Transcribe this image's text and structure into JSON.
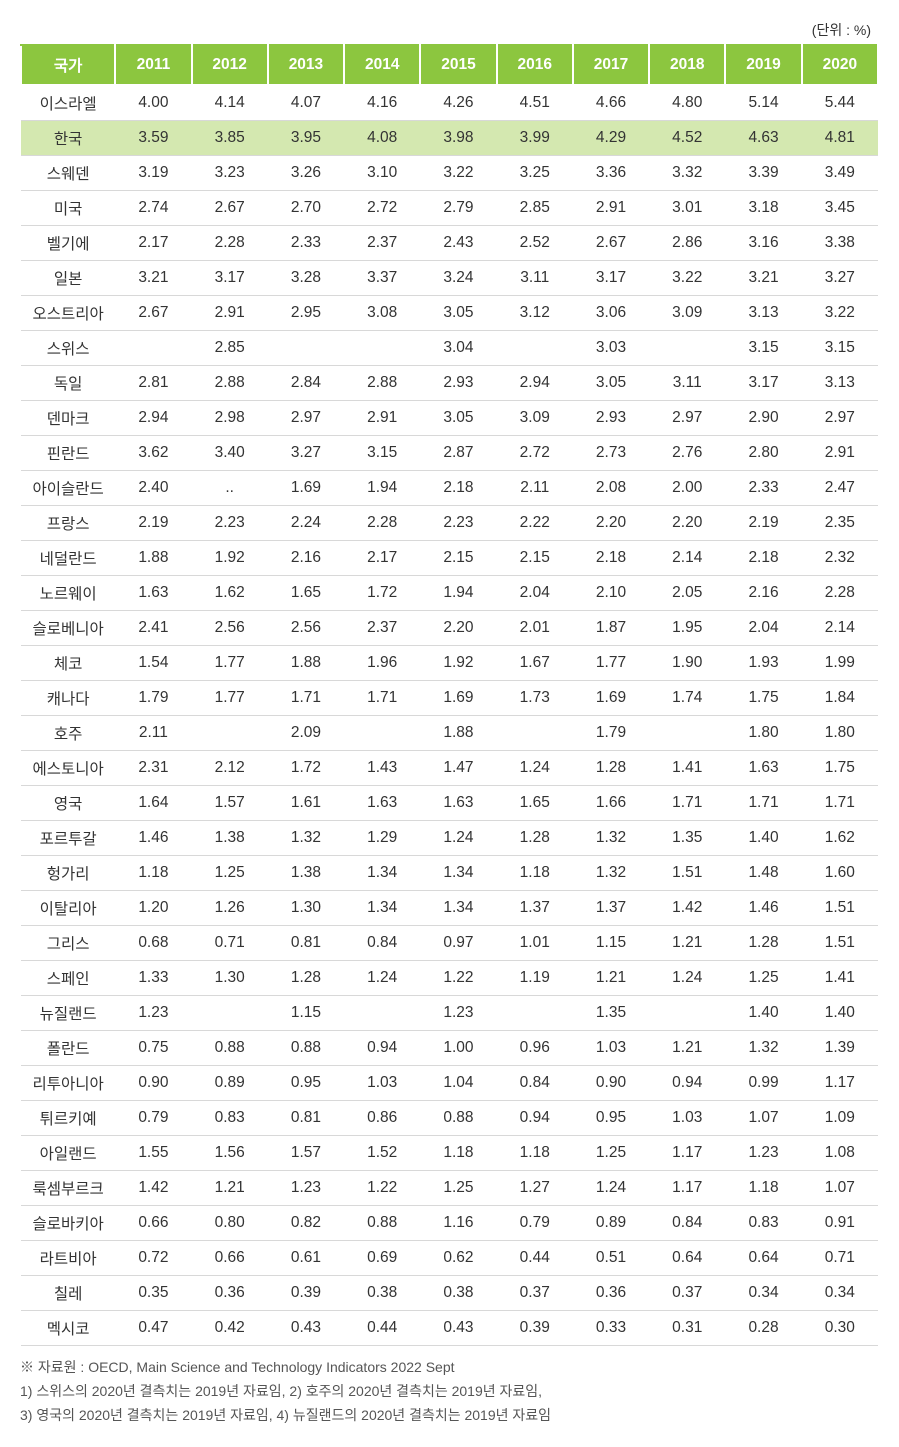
{
  "unit_label": "(단위 : %)",
  "table": {
    "columns": [
      "국가",
      "2011",
      "2012",
      "2013",
      "2014",
      "2015",
      "2016",
      "2017",
      "2018",
      "2019",
      "2020"
    ],
    "highlight_row_index": 1,
    "header_bg": "#8cc63f",
    "header_text_color": "#ffffff",
    "highlight_bg": "#d4e8b0",
    "row_border_color": "#d8d8d8",
    "text_color": "#333333",
    "fontsize": 15.5,
    "rows": [
      [
        "이스라엘",
        "4.00",
        "4.14",
        "4.07",
        "4.16",
        "4.26",
        "4.51",
        "4.66",
        "4.80",
        "5.14",
        "5.44"
      ],
      [
        "한국",
        "3.59",
        "3.85",
        "3.95",
        "4.08",
        "3.98",
        "3.99",
        "4.29",
        "4.52",
        "4.63",
        "4.81"
      ],
      [
        "스웨덴",
        "3.19",
        "3.23",
        "3.26",
        "3.10",
        "3.22",
        "3.25",
        "3.36",
        "3.32",
        "3.39",
        "3.49"
      ],
      [
        "미국",
        "2.74",
        "2.67",
        "2.70",
        "2.72",
        "2.79",
        "2.85",
        "2.91",
        "3.01",
        "3.18",
        "3.45"
      ],
      [
        "벨기에",
        "2.17",
        "2.28",
        "2.33",
        "2.37",
        "2.43",
        "2.52",
        "2.67",
        "2.86",
        "3.16",
        "3.38"
      ],
      [
        "일본",
        "3.21",
        "3.17",
        "3.28",
        "3.37",
        "3.24",
        "3.11",
        "3.17",
        "3.22",
        "3.21",
        "3.27"
      ],
      [
        "오스트리아",
        "2.67",
        "2.91",
        "2.95",
        "3.08",
        "3.05",
        "3.12",
        "3.06",
        "3.09",
        "3.13",
        "3.22"
      ],
      [
        "스위스",
        "",
        "2.85",
        "",
        "",
        "3.04",
        "",
        "3.03",
        "",
        "3.15",
        "3.15"
      ],
      [
        "독일",
        "2.81",
        "2.88",
        "2.84",
        "2.88",
        "2.93",
        "2.94",
        "3.05",
        "3.11",
        "3.17",
        "3.13"
      ],
      [
        "덴마크",
        "2.94",
        "2.98",
        "2.97",
        "2.91",
        "3.05",
        "3.09",
        "2.93",
        "2.97",
        "2.90",
        "2.97"
      ],
      [
        "핀란드",
        "3.62",
        "3.40",
        "3.27",
        "3.15",
        "2.87",
        "2.72",
        "2.73",
        "2.76",
        "2.80",
        "2.91"
      ],
      [
        "아이슬란드",
        "2.40",
        "..",
        "1.69",
        "1.94",
        "2.18",
        "2.11",
        "2.08",
        "2.00",
        "2.33",
        "2.47"
      ],
      [
        "프랑스",
        "2.19",
        "2.23",
        "2.24",
        "2.28",
        "2.23",
        "2.22",
        "2.20",
        "2.20",
        "2.19",
        "2.35"
      ],
      [
        "네덜란드",
        "1.88",
        "1.92",
        "2.16",
        "2.17",
        "2.15",
        "2.15",
        "2.18",
        "2.14",
        "2.18",
        "2.32"
      ],
      [
        "노르웨이",
        "1.63",
        "1.62",
        "1.65",
        "1.72",
        "1.94",
        "2.04",
        "2.10",
        "2.05",
        "2.16",
        "2.28"
      ],
      [
        "슬로베니아",
        "2.41",
        "2.56",
        "2.56",
        "2.37",
        "2.20",
        "2.01",
        "1.87",
        "1.95",
        "2.04",
        "2.14"
      ],
      [
        "체코",
        "1.54",
        "1.77",
        "1.88",
        "1.96",
        "1.92",
        "1.67",
        "1.77",
        "1.90",
        "1.93",
        "1.99"
      ],
      [
        "캐나다",
        "1.79",
        "1.77",
        "1.71",
        "1.71",
        "1.69",
        "1.73",
        "1.69",
        "1.74",
        "1.75",
        "1.84"
      ],
      [
        "호주",
        "2.11",
        "",
        "2.09",
        "",
        "1.88",
        "",
        "1.79",
        "",
        "1.80",
        "1.80"
      ],
      [
        "에스토니아",
        "2.31",
        "2.12",
        "1.72",
        "1.43",
        "1.47",
        "1.24",
        "1.28",
        "1.41",
        "1.63",
        "1.75"
      ],
      [
        "영국",
        "1.64",
        "1.57",
        "1.61",
        "1.63",
        "1.63",
        "1.65",
        "1.66",
        "1.71",
        "1.71",
        "1.71"
      ],
      [
        "포르투갈",
        "1.46",
        "1.38",
        "1.32",
        "1.29",
        "1.24",
        "1.28",
        "1.32",
        "1.35",
        "1.40",
        "1.62"
      ],
      [
        "헝가리",
        "1.18",
        "1.25",
        "1.38",
        "1.34",
        "1.34",
        "1.18",
        "1.32",
        "1.51",
        "1.48",
        "1.60"
      ],
      [
        "이탈리아",
        "1.20",
        "1.26",
        "1.30",
        "1.34",
        "1.34",
        "1.37",
        "1.37",
        "1.42",
        "1.46",
        "1.51"
      ],
      [
        "그리스",
        "0.68",
        "0.71",
        "0.81",
        "0.84",
        "0.97",
        "1.01",
        "1.15",
        "1.21",
        "1.28",
        "1.51"
      ],
      [
        "스페인",
        "1.33",
        "1.30",
        "1.28",
        "1.24",
        "1.22",
        "1.19",
        "1.21",
        "1.24",
        "1.25",
        "1.41"
      ],
      [
        "뉴질랜드",
        "1.23",
        "",
        "1.15",
        "",
        "1.23",
        "",
        "1.35",
        "",
        "1.40",
        "1.40"
      ],
      [
        "폴란드",
        "0.75",
        "0.88",
        "0.88",
        "0.94",
        "1.00",
        "0.96",
        "1.03",
        "1.21",
        "1.32",
        "1.39"
      ],
      [
        "리투아니아",
        "0.90",
        "0.89",
        "0.95",
        "1.03",
        "1.04",
        "0.84",
        "0.90",
        "0.94",
        "0.99",
        "1.17"
      ],
      [
        "튀르키예",
        "0.79",
        "0.83",
        "0.81",
        "0.86",
        "0.88",
        "0.94",
        "0.95",
        "1.03",
        "1.07",
        "1.09"
      ],
      [
        "아일랜드",
        "1.55",
        "1.56",
        "1.57",
        "1.52",
        "1.18",
        "1.18",
        "1.25",
        "1.17",
        "1.23",
        "1.08"
      ],
      [
        "룩셈부르크",
        "1.42",
        "1.21",
        "1.23",
        "1.22",
        "1.25",
        "1.27",
        "1.24",
        "1.17",
        "1.18",
        "1.07"
      ],
      [
        "슬로바키아",
        "0.66",
        "0.80",
        "0.82",
        "0.88",
        "1.16",
        "0.79",
        "0.89",
        "0.84",
        "0.83",
        "0.91"
      ],
      [
        "라트비아",
        "0.72",
        "0.66",
        "0.61",
        "0.69",
        "0.62",
        "0.44",
        "0.51",
        "0.64",
        "0.64",
        "0.71"
      ],
      [
        "칠레",
        "0.35",
        "0.36",
        "0.39",
        "0.38",
        "0.38",
        "0.37",
        "0.36",
        "0.37",
        "0.34",
        "0.34"
      ],
      [
        "멕시코",
        "0.47",
        "0.42",
        "0.43",
        "0.44",
        "0.43",
        "0.39",
        "0.33",
        "0.31",
        "0.28",
        "0.30"
      ]
    ]
  },
  "footnotes": [
    "※ 자료원 : OECD, Main Science and Technology Indicators 2022 Sept",
    "1) 스위스의 2020년 결측치는 2019년 자료임, 2) 호주의 2020년 결측치는 2019년 자료임,",
    "3) 영국의 2020년 결측치는 2019년 자료임, 4) 뉴질랜드의 2020년 결측치는 2019년 자료임"
  ]
}
